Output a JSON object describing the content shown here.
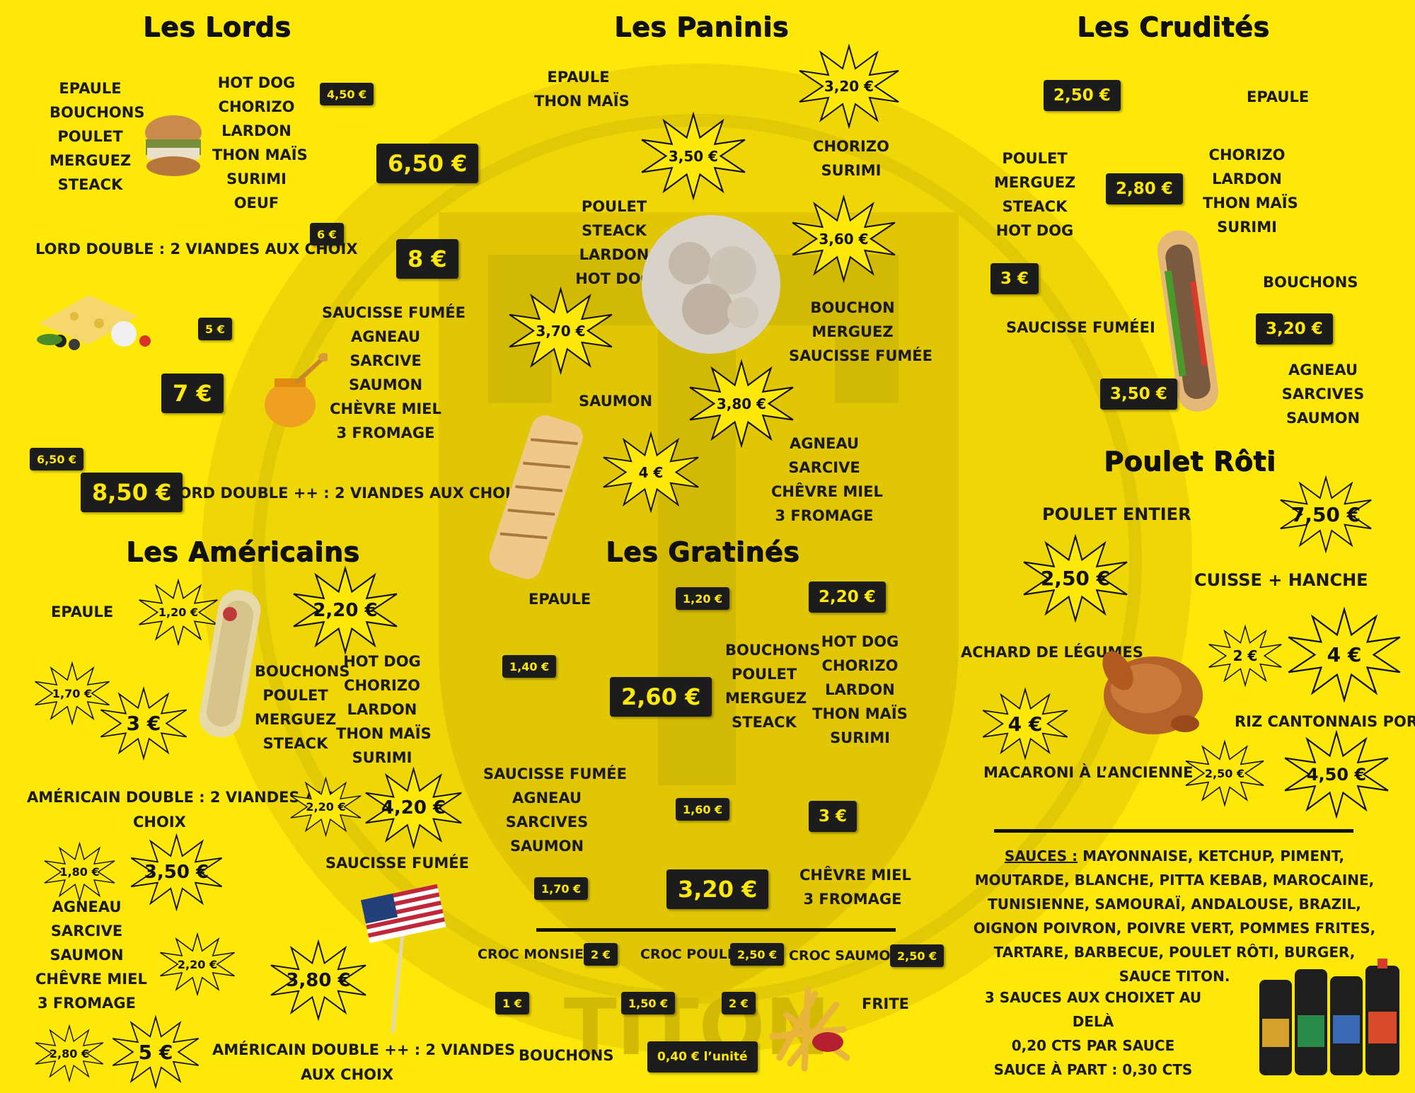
{
  "colors": {
    "background": "#fde80a",
    "price_box": "#1c1c1c",
    "price_text": "#fde80a",
    "text": "#1a1a1a",
    "watermark": "#c8b400"
  },
  "watermark": {
    "text": "TITON"
  },
  "lords": {
    "title": "Les Lords",
    "group1": [
      "Epaule",
      "Bouchons",
      "Poulet",
      "Merguez",
      "Steack"
    ],
    "group2": [
      "Hot Dog",
      "Chorizo",
      "Lardon",
      "Thon Maïs",
      "Surimi",
      "Oeuf"
    ],
    "price_small_1": "4,50 €",
    "price_big_1": "6,50 €",
    "double_label": "Lord Double : 2 Viandes aux choix",
    "price_small_2": "6 €",
    "price_big_2": "8 €",
    "group3": [
      "Saucisse Fumée",
      "Agneau",
      "Sarcive",
      "Saumon",
      "Chèvre Miel",
      "3 Fromage"
    ],
    "price_small_3": "5 €",
    "price_big_3": "7 €",
    "price_small_4": "6,50 €",
    "price_big_4": "8,50 €",
    "double_plus_label": "Lord Double ++ : 2 Viandes aux choix"
  },
  "paninis": {
    "title": "Les Paninis",
    "g1": [
      "Epaule",
      "Thon Maïs"
    ],
    "p1": "3,20 €",
    "g2": [
      "Chorizo",
      "Surimi"
    ],
    "p2": "3,50 €",
    "g3": [
      "Poulet",
      "Steack",
      "Lardon",
      "Hot Dog"
    ],
    "p3": "3,60 €",
    "g4": [
      "Bouchon",
      "Merguez",
      "Saucisse Fumée"
    ],
    "p4": "3,70 €",
    "g5_label": "Saumon",
    "p5": "3,80 €",
    "p6": "4 €",
    "g6": [
      "Agneau",
      "Sarcive",
      "Chêvre Miel",
      "3 Fromage"
    ]
  },
  "crudites": {
    "title": "Les Crudités",
    "p1": "2,50 €",
    "g1_label": "Epaule",
    "g2": [
      "Poulet",
      "Merguez",
      "Steack",
      "Hot Dog"
    ],
    "p2": "2,80 €",
    "g3": [
      "Chorizo",
      "Lardon",
      "Thon Maïs",
      "Surimi"
    ],
    "p3": "3 €",
    "g4_label": "Bouchons",
    "g5_label": "Saucisse Fuméei",
    "p4": "3,20 €",
    "p5": "3,50 €",
    "g6": [
      "Agneau",
      "Sarcives",
      "Saumon"
    ]
  },
  "poulet": {
    "title": "Poulet Rôti",
    "entier_label": "Poulet Entier",
    "p_entier": "7,50 €",
    "p_cuisse": "2,50 €",
    "cuisse_label": "Cuisse + Hanche",
    "achard_label": "Achard de légumes",
    "p_achard_small": "2 €",
    "p_achard_big": "4 €",
    "p_riz_left": "4 €",
    "riz_label": "Riz Cantonnais Porc",
    "macaroni_label": "Macaroni à l’ancienne",
    "p_mac_small": "2,50 €",
    "p_mac_big": "4,50 €"
  },
  "sauces": {
    "heading": "Sauces :",
    "list": "Mayonnaise, Ketchup, Piment, Moutarde, Blanche, Pitta Kebab, Marocaine, Tunisienne, Samouraï, Andalouse, Brazil, Oignon Poivron, Poivre Vert, Pommes Frites, Tartare, Barbecue, Poulet Rôti, Burger, sauce TITON.",
    "note1": "3 sauces aux choixet au delà",
    "note2": "0,20 cts par sauce",
    "note3": "Sauce à part : 0,30 cts"
  },
  "americains": {
    "title": "Les Américains",
    "g1_label": "Epaule",
    "p1_small": "1,20 €",
    "p1_big": "2,20 €",
    "g2": [
      "Bouchons",
      "Poulet",
      "Merguez",
      "Steack"
    ],
    "g3": [
      "Hot Dog",
      "Chorizo",
      "Lardon",
      "Thon Maïs",
      "Surimi"
    ],
    "p2_small": "1,70 €",
    "p2_big": "3 €",
    "double_label_1": "Américain Double : 2 Viandes aux",
    "double_label_2": "choix",
    "p3_small": "2,20 €",
    "p3_big": "4,20 €",
    "saucisse_label": "Saucisse Fumée",
    "p4_small": "1,80 €",
    "p4_big": "3,50 €",
    "g4": [
      "Agneau",
      "Sarcive",
      "Saumon",
      "Chêvre Miel",
      "3 Fromage"
    ],
    "p5_small": "2,20 €",
    "p5_big": "3,80 €",
    "p6_small": "2,80 €",
    "p6_big": "5 €",
    "double_plus_1": "Américain Double ++ : 2 Viandes",
    "double_plus_2": "aux choix"
  },
  "gratines": {
    "title": "Les Gratinés",
    "g1_label": "Epaule",
    "p1_small": "1,20 €",
    "p1_big": "2,20 €",
    "p2_small": "1,40 €",
    "p2_big": "2,60 €",
    "g2": [
      "Bouchons",
      "Poulet",
      "Merguez",
      "Steack"
    ],
    "g3": [
      "Hot Dog",
      "Chorizo",
      "Lardon",
      "Thon Maïs",
      "Surimi"
    ],
    "g4": [
      "Saucisse Fumée",
      "Agneau",
      "Sarcives",
      "Saumon"
    ],
    "p3_small": "1,60 €",
    "p3_big": "3 €",
    "p4_small": "1,70 €",
    "p4_big": "3,20 €",
    "g5": [
      "Chêvre Miel",
      "3 Fromage"
    ]
  },
  "extras": {
    "croc_monsieur": "Croc Monsieur",
    "p_croc_monsieur": "2 €",
    "croc_poulet": "Croc Poulet",
    "p_croc_poulet": "2,50 €",
    "croc_saumon": "Croc Saumon",
    "p_croc_saumon": "2,50 €",
    "p_frite_1": "1 €",
    "p_frite_2": "1,50 €",
    "p_frite_3": "2 €",
    "frite_label": "Frite",
    "bouchons_label": "Bouchons",
    "p_bouchons": "0,40 € l’unité"
  }
}
